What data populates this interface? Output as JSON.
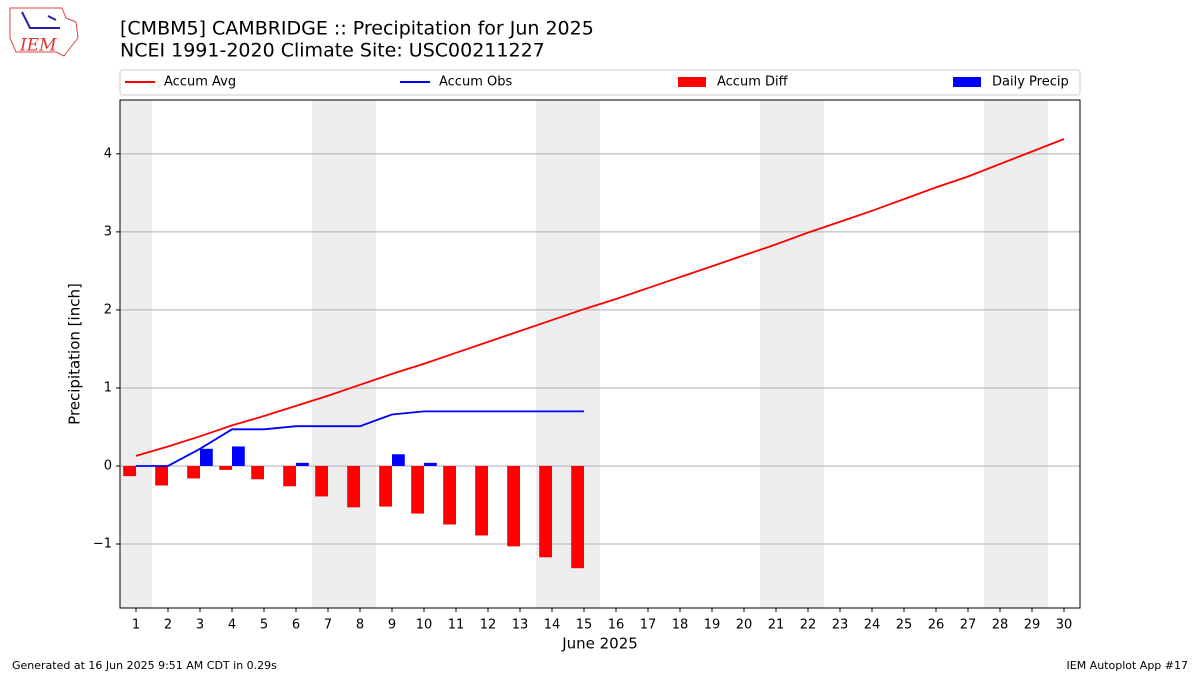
{
  "logo_text": "IEM",
  "footer_left": "Generated at 16 Jun 2025 9:51 AM CDT in 0.29s",
  "footer_right": "IEM Autoplot App #17",
  "chart_data": {
    "type": "combo",
    "title": "[CMBM5] CAMBRIDGE :: Precipitation for Jun 2025",
    "subtitle": "NCEI 1991-2020 Climate Site: USC00211227",
    "x_label": "June 2025",
    "y_label": "Precipitation [inch]",
    "categories": [
      "1",
      "2",
      "3",
      "4",
      "5",
      "6",
      "7",
      "8",
      "9",
      "10",
      "11",
      "12",
      "13",
      "14",
      "15",
      "16",
      "17",
      "18",
      "19",
      "20",
      "21",
      "22",
      "23",
      "24",
      "25",
      "26",
      "27",
      "28",
      "29",
      "30"
    ],
    "shaded_days": [
      1,
      7,
      8,
      14,
      15,
      21,
      22,
      28,
      29
    ],
    "shade_color": "#eeeeee",
    "xlim": [
      0.5,
      30.5
    ],
    "ylim": [
      -1.82,
      4.69
    ],
    "yticks": [
      {
        "value": -1,
        "label": "−1"
      },
      0,
      1,
      2,
      3,
      4
    ],
    "grid": true,
    "series": [
      {
        "name": "Accum Avg",
        "type": "line",
        "color": "#ff0000",
        "values": [
          0.13,
          0.25,
          0.38,
          0.52,
          0.64,
          0.77,
          0.9,
          1.04,
          1.18,
          1.31,
          1.45,
          1.59,
          1.73,
          1.87,
          2.01,
          2.14,
          2.28,
          2.42,
          2.56,
          2.7,
          2.84,
          2.99,
          3.13,
          3.27,
          3.42,
          3.57,
          3.71,
          3.87,
          4.03,
          4.19
        ]
      },
      {
        "name": "Accum Obs",
        "type": "line",
        "color": "#0000ff",
        "values": [
          0,
          0,
          0.22,
          0.47,
          0.47,
          0.51,
          0.51,
          0.51,
          0.66,
          0.7,
          0.7,
          0.7,
          0.7,
          0.7,
          0.7,
          null,
          null,
          null,
          null,
          null,
          null,
          null,
          null,
          null,
          null,
          null,
          null,
          null,
          null,
          null
        ]
      },
      {
        "name": "Accum Diff",
        "type": "bar",
        "color": "#ff0000",
        "offset": -0.2,
        "width": 0.4,
        "values": [
          -0.13,
          -0.25,
          -0.16,
          -0.05,
          -0.17,
          -0.26,
          -0.39,
          -0.53,
          -0.52,
          -0.61,
          -0.75,
          -0.89,
          -1.03,
          -1.17,
          -1.31,
          null,
          null,
          null,
          null,
          null,
          null,
          null,
          null,
          null,
          null,
          null,
          null,
          null,
          null,
          null
        ]
      },
      {
        "name": "Daily Precip",
        "type": "bar",
        "color": "#0000ff",
        "offset": 0.2,
        "width": 0.4,
        "values": [
          0,
          0,
          0.22,
          0.25,
          0,
          0.04,
          0,
          0,
          0.15,
          0.04,
          0,
          0,
          0,
          0,
          0,
          null,
          null,
          null,
          null,
          null,
          null,
          null,
          null,
          null,
          null,
          null,
          null,
          null,
          null,
          null
        ]
      }
    ]
  }
}
